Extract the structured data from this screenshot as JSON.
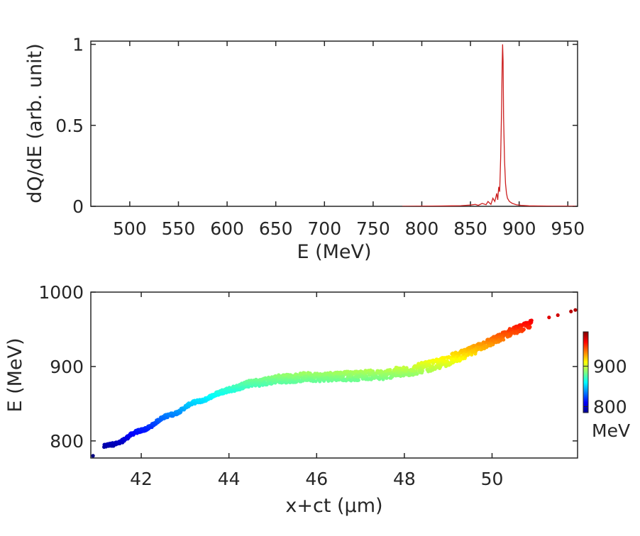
{
  "chart_data": [
    {
      "type": "line",
      "name": "energy-spectrum",
      "xlabel": "E (MeV)",
      "ylabel": "dQ/dE (arb. unit)",
      "xlim": [
        460,
        960
      ],
      "ylim": [
        0,
        1.02
      ],
      "xticks": [
        500,
        550,
        600,
        650,
        700,
        750,
        800,
        850,
        900,
        950
      ],
      "yticks": [
        0,
        0.5,
        1
      ],
      "ytick_labels": [
        "0",
        "0.5",
        "1"
      ],
      "line_color": "#cc1f1f",
      "series": [
        {
          "name": "dQ/dE",
          "x": [
            780,
            800,
            820,
            840,
            850,
            855,
            858,
            862,
            866,
            868,
            871,
            873,
            875,
            877,
            878,
            879,
            880,
            881,
            882,
            882.5,
            883,
            883.5,
            884,
            885,
            886,
            887,
            888,
            890,
            893,
            897,
            902,
            910,
            920,
            935,
            950,
            958
          ],
          "y": [
            0,
            0.001,
            0.002,
            0.004,
            0.008,
            0.012,
            0.006,
            0.018,
            0.01,
            0.03,
            0.012,
            0.05,
            0.03,
            0.08,
            0.04,
            0.12,
            0.09,
            0.3,
            0.62,
            0.86,
            1.0,
            0.9,
            0.55,
            0.28,
            0.14,
            0.08,
            0.05,
            0.03,
            0.018,
            0.01,
            0.006,
            0.003,
            0.002,
            0.001,
            0.001,
            0
          ]
        }
      ]
    },
    {
      "type": "scatter",
      "name": "longitudinal-phase-space",
      "xlabel": "x+ct (μm)",
      "ylabel": "E (MeV)",
      "xlim": [
        40.85,
        51.95
      ],
      "ylim": [
        777,
        1000
      ],
      "xticks": [
        42,
        44,
        46,
        48,
        50
      ],
      "yticks": [
        800,
        900,
        1000
      ],
      "colorbar": {
        "range": [
          785,
          985
        ],
        "ticks": [
          800,
          900
        ],
        "label": "MeV",
        "colormap": "jet"
      },
      "centerline": {
        "x": [
          41.15,
          41.5,
          42.0,
          42.5,
          43.0,
          43.5,
          44.0,
          44.5,
          45.0,
          45.5,
          46.0,
          46.5,
          47.0,
          47.5,
          48.0,
          48.5,
          49.0,
          49.5,
          50.0,
          50.5,
          50.9
        ],
        "E": [
          791,
          799,
          814,
          830,
          845,
          858,
          869,
          877,
          882,
          885,
          886,
          887,
          888,
          889,
          893,
          899,
          908,
          920,
          934,
          948,
          958
        ]
      },
      "outliers": [
        {
          "x": 40.9,
          "E": 780
        },
        {
          "x": 51.3,
          "E": 966
        },
        {
          "x": 51.5,
          "E": 969
        },
        {
          "x": 51.8,
          "E": 974
        },
        {
          "x": 51.9,
          "E": 976
        }
      ]
    }
  ]
}
